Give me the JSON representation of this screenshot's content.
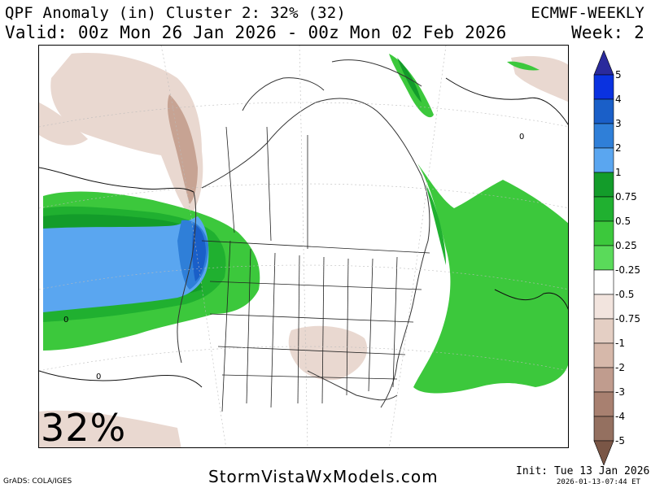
{
  "header": {
    "title": "QPF Anomaly (in) Cluster 2: 32% (32)",
    "valid": "Valid: 00z Mon 26 Jan 2026 - 00z Mon 02 Feb 2026",
    "model": "ECMWF-WEEKLY",
    "week": "Week: 2"
  },
  "map": {
    "cluster_percent": "32%",
    "contour_labels": [
      "0",
      "0",
      "0"
    ]
  },
  "colorbar": {
    "labels": [
      "5",
      "4",
      "3",
      "2",
      "1",
      "0.75",
      "0.5",
      "0.25",
      "-0.25",
      "-0.5",
      "-0.75",
      "-1",
      "-2",
      "-3",
      "-4",
      "-5"
    ],
    "colors": [
      "#2a2a9c",
      "#0a32e0",
      "#1a5fc8",
      "#2f7fd8",
      "#5aa6f0",
      "#139c2a",
      "#20b030",
      "#3cc83c",
      "#5ada5a",
      "#ffffff",
      "#f2e4de",
      "#e4cfc4",
      "#d6b8aa",
      "#c09c8e",
      "#a88070",
      "#947060",
      "#7a5646"
    ]
  },
  "footer": {
    "left": "GrADS: COLA/IGES",
    "site": "StormVistaWxModels.com",
    "init": "Init: Tue 13 Jan 2026",
    "timestamp": "2026-01-13-07:44 ET"
  }
}
